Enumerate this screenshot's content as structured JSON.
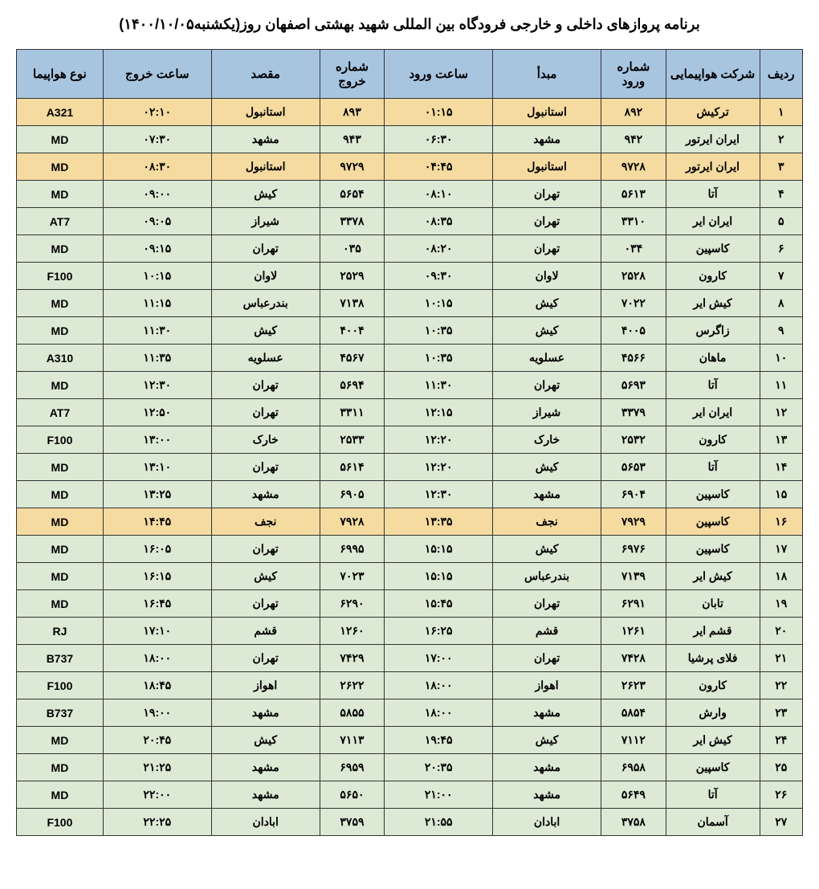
{
  "title": "برنامه پروازهای داخلی و خارجی فرودگاه بین المللی شهید بهشتی اصفهان روز(یکشنبه۱۴۰۰/۱۰/۰۵)",
  "columns": {
    "row": "ردیف",
    "airline": "شرکت هواپیمایی",
    "arrnum": "شماره ورود",
    "origin": "مبدأ",
    "arrtime": "ساعت ورود",
    "depnum": "شماره خروج",
    "dest": "مقصد",
    "deptime": "ساعت خروج",
    "type": "نوع هواپیما"
  },
  "header_bg": "#a8c5e0",
  "green_bg": "#dce9d5",
  "yellow_bg": "#f5dba0",
  "border_color": "#333333",
  "rows": [
    {
      "n": "۱",
      "airline": "ترکیش",
      "arrnum": "۸۹۲",
      "origin": "استانبول",
      "arrtime": "۰۱:۱۵",
      "depnum": "۸۹۳",
      "dest": "استانبول",
      "deptime": "۰۲:۱۰",
      "type": "A321",
      "cls": "yellow"
    },
    {
      "n": "۲",
      "airline": "ایران ایرتور",
      "arrnum": "۹۴۲",
      "origin": "مشهد",
      "arrtime": "۰۶:۳۰",
      "depnum": "۹۴۳",
      "dest": "مشهد",
      "deptime": "۰۷:۳۰",
      "type": "MD",
      "cls": "green"
    },
    {
      "n": "۳",
      "airline": "ایران ایرتور",
      "arrnum": "۹۷۲۸",
      "origin": "استانبول",
      "arrtime": "۰۴:۴۵",
      "depnum": "۹۷۲۹",
      "dest": "استانبول",
      "deptime": "۰۸:۳۰",
      "type": "MD",
      "cls": "yellow"
    },
    {
      "n": "۴",
      "airline": "آتا",
      "arrnum": "۵۶۱۳",
      "origin": "تهران",
      "arrtime": "۰۸:۱۰",
      "depnum": "۵۶۵۴",
      "dest": "کیش",
      "deptime": "۰۹:۰۰",
      "type": "MD",
      "cls": "green"
    },
    {
      "n": "۵",
      "airline": "ایران ایر",
      "arrnum": "۳۳۱۰",
      "origin": "تهران",
      "arrtime": "۰۸:۳۵",
      "depnum": "۳۳۷۸",
      "dest": "شیراز",
      "deptime": "۰۹:۰۵",
      "type": "AT7",
      "cls": "green"
    },
    {
      "n": "۶",
      "airline": "کاسپین",
      "arrnum": "۰۳۴",
      "origin": "تهران",
      "arrtime": "۰۸:۲۰",
      "depnum": "۰۳۵",
      "dest": "تهران",
      "deptime": "۰۹:۱۵",
      "type": "MD",
      "cls": "green"
    },
    {
      "n": "۷",
      "airline": "کارون",
      "arrnum": "۲۵۲۸",
      "origin": "لاوان",
      "arrtime": "۰۹:۳۰",
      "depnum": "۲۵۲۹",
      "dest": "لاوان",
      "deptime": "۱۰:۱۵",
      "type": "F100",
      "cls": "green"
    },
    {
      "n": "۸",
      "airline": "کیش ایر",
      "arrnum": "۷۰۲۲",
      "origin": "کیش",
      "arrtime": "۱۰:۱۵",
      "depnum": "۷۱۳۸",
      "dest": "بندرعباس",
      "deptime": "۱۱:۱۵",
      "type": "MD",
      "cls": "green"
    },
    {
      "n": "۹",
      "airline": "زاگرس",
      "arrnum": "۴۰۰۵",
      "origin": "کیش",
      "arrtime": "۱۰:۳۵",
      "depnum": "۴۰۰۴",
      "dest": "کیش",
      "deptime": "۱۱:۳۰",
      "type": "MD",
      "cls": "green"
    },
    {
      "n": "۱۰",
      "airline": "ماهان",
      "arrnum": "۴۵۶۶",
      "origin": "عسلویه",
      "arrtime": "۱۰:۳۵",
      "depnum": "۴۵۶۷",
      "dest": "عسلویه",
      "deptime": "۱۱:۳۵",
      "type": "A310",
      "cls": "green"
    },
    {
      "n": "۱۱",
      "airline": "آتا",
      "arrnum": "۵۶۹۳",
      "origin": "تهران",
      "arrtime": "۱۱:۳۰",
      "depnum": "۵۶۹۴",
      "dest": "تهران",
      "deptime": "۱۲:۳۰",
      "type": "MD",
      "cls": "green"
    },
    {
      "n": "۱۲",
      "airline": "ایران ایر",
      "arrnum": "۳۳۷۹",
      "origin": "شیراز",
      "arrtime": "۱۲:۱۵",
      "depnum": "۳۳۱۱",
      "dest": "تهران",
      "deptime": "۱۲:۵۰",
      "type": "AT7",
      "cls": "green"
    },
    {
      "n": "۱۳",
      "airline": "کارون",
      "arrnum": "۲۵۳۲",
      "origin": "خارک",
      "arrtime": "۱۲:۲۰",
      "depnum": "۲۵۳۳",
      "dest": "خارک",
      "deptime": "۱۳:۰۰",
      "type": "F100",
      "cls": "green"
    },
    {
      "n": "۱۴",
      "airline": "آتا",
      "arrnum": "۵۶۵۳",
      "origin": "کیش",
      "arrtime": "۱۲:۲۰",
      "depnum": "۵۶۱۴",
      "dest": "تهران",
      "deptime": "۱۳:۱۰",
      "type": "MD",
      "cls": "green"
    },
    {
      "n": "۱۵",
      "airline": "کاسپین",
      "arrnum": "۶۹۰۴",
      "origin": "مشهد",
      "arrtime": "۱۲:۳۰",
      "depnum": "۶۹۰۵",
      "dest": "مشهد",
      "deptime": "۱۳:۲۵",
      "type": "MD",
      "cls": "green"
    },
    {
      "n": "۱۶",
      "airline": "کاسپین",
      "arrnum": "۷۹۲۹",
      "origin": "نجف",
      "arrtime": "۱۳:۳۵",
      "depnum": "۷۹۲۸",
      "dest": "نجف",
      "deptime": "۱۴:۴۵",
      "type": "MD",
      "cls": "yellow"
    },
    {
      "n": "۱۷",
      "airline": "کاسپین",
      "arrnum": "۶۹۷۶",
      "origin": "کیش",
      "arrtime": "۱۵:۱۵",
      "depnum": "۶۹۹۵",
      "dest": "تهران",
      "deptime": "۱۶:۰۵",
      "type": "MD",
      "cls": "green"
    },
    {
      "n": "۱۸",
      "airline": "کیش ایر",
      "arrnum": "۷۱۳۹",
      "origin": "بندرعباس",
      "arrtime": "۱۵:۱۵",
      "depnum": "۷۰۲۳",
      "dest": "کیش",
      "deptime": "۱۶:۱۵",
      "type": "MD",
      "cls": "green"
    },
    {
      "n": "۱۹",
      "airline": "تابان",
      "arrnum": "۶۲۹۱",
      "origin": "تهران",
      "arrtime": "۱۵:۴۵",
      "depnum": "۶۲۹۰",
      "dest": "تهران",
      "deptime": "۱۶:۴۵",
      "type": "MD",
      "cls": "green"
    },
    {
      "n": "۲۰",
      "airline": "قشم ایر",
      "arrnum": "۱۲۶۱",
      "origin": "قشم",
      "arrtime": "۱۶:۲۵",
      "depnum": "۱۲۶۰",
      "dest": "قشم",
      "deptime": "۱۷:۱۰",
      "type": "RJ",
      "cls": "green"
    },
    {
      "n": "۲۱",
      "airline": "فلای پرشیا",
      "arrnum": "۷۴۲۸",
      "origin": "تهران",
      "arrtime": "۱۷:۰۰",
      "depnum": "۷۴۲۹",
      "dest": "تهران",
      "deptime": "۱۸:۰۰",
      "type": "B737",
      "cls": "green"
    },
    {
      "n": "۲۲",
      "airline": "کارون",
      "arrnum": "۲۶۲۳",
      "origin": "اهواز",
      "arrtime": "۱۸:۰۰",
      "depnum": "۲۶۲۲",
      "dest": "اهواز",
      "deptime": "۱۸:۴۵",
      "type": "F100",
      "cls": "green"
    },
    {
      "n": "۲۳",
      "airline": "وارش",
      "arrnum": "۵۸۵۴",
      "origin": "مشهد",
      "arrtime": "۱۸:۰۰",
      "depnum": "۵۸۵۵",
      "dest": "مشهد",
      "deptime": "۱۹:۰۰",
      "type": "B737",
      "cls": "green"
    },
    {
      "n": "۲۴",
      "airline": "کیش ایر",
      "arrnum": "۷۱۱۲",
      "origin": "کیش",
      "arrtime": "۱۹:۴۵",
      "depnum": "۷۱۱۳",
      "dest": "کیش",
      "deptime": "۲۰:۴۵",
      "type": "MD",
      "cls": "green"
    },
    {
      "n": "۲۵",
      "airline": "کاسپین",
      "arrnum": "۶۹۵۸",
      "origin": "مشهد",
      "arrtime": "۲۰:۳۵",
      "depnum": "۶۹۵۹",
      "dest": "مشهد",
      "deptime": "۲۱:۲۵",
      "type": "MD",
      "cls": "green"
    },
    {
      "n": "۲۶",
      "airline": "آتا",
      "arrnum": "۵۶۴۹",
      "origin": "مشهد",
      "arrtime": "۲۱:۰۰",
      "depnum": "۵۶۵۰",
      "dest": "مشهد",
      "deptime": "۲۲:۰۰",
      "type": "MD",
      "cls": "green"
    },
    {
      "n": "۲۷",
      "airline": "آسمان",
      "arrnum": "۳۷۵۸",
      "origin": "ابادان",
      "arrtime": "۲۱:۵۵",
      "depnum": "۳۷۵۹",
      "dest": "ابادان",
      "deptime": "۲۲:۲۵",
      "type": "F100",
      "cls": "green"
    }
  ]
}
